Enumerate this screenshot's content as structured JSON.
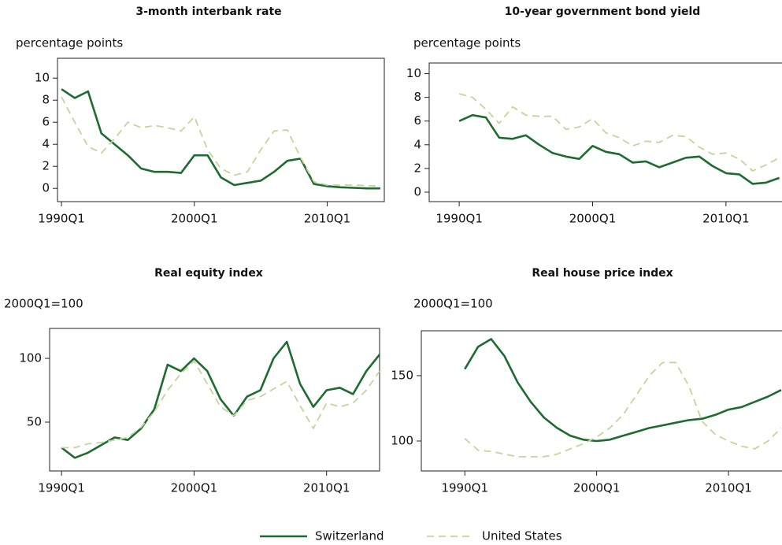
{
  "chart_data": [
    {
      "type": "line",
      "title": "3-month interbank rate",
      "ylabel": "percentage points",
      "x": [
        1990,
        1991,
        1992,
        1993,
        1994,
        1995,
        1996,
        1997,
        1998,
        1999,
        2000,
        2001,
        2002,
        2003,
        2004,
        2005,
        2006,
        2007,
        2008,
        2009,
        2010,
        2011,
        2012,
        2013,
        2014
      ],
      "xlim": [
        1989.7,
        2014.3
      ],
      "xticks": [
        {
          "value": 1990,
          "label": "1990Q1"
        },
        {
          "value": 2000,
          "label": "2000Q1"
        },
        {
          "value": 2010,
          "label": "2010Q1"
        }
      ],
      "ylim": [
        -1.2,
        11.8
      ],
      "yticks": [
        0,
        2,
        4,
        6,
        8,
        10
      ],
      "series": [
        {
          "name": "Switzerland",
          "color": "#1e6b30",
          "values": [
            9.0,
            8.2,
            8.8,
            5.0,
            4.0,
            3.0,
            1.8,
            1.5,
            1.5,
            1.4,
            3.0,
            3.0,
            1.0,
            0.3,
            0.5,
            0.7,
            1.5,
            2.5,
            2.7,
            0.4,
            0.2,
            0.1,
            0.05,
            0.0,
            0.0
          ]
        },
        {
          "name": "United States",
          "color": "#c3d59b",
          "values": [
            8.3,
            6.0,
            3.8,
            3.2,
            4.5,
            6.0,
            5.5,
            5.7,
            5.5,
            5.2,
            6.5,
            3.5,
            1.8,
            1.2,
            1.5,
            3.5,
            5.2,
            5.3,
            2.8,
            0.6,
            0.3,
            0.3,
            0.3,
            0.25,
            0.2
          ]
        }
      ]
    },
    {
      "type": "line",
      "title": "10-year government bond yield",
      "ylabel": "percentage points",
      "x": [
        1990,
        1991,
        1992,
        1993,
        1994,
        1995,
        1996,
        1997,
        1998,
        1999,
        2000,
        2001,
        2002,
        2003,
        2004,
        2005,
        2006,
        2007,
        2008,
        2009,
        2010,
        2011,
        2012,
        2013,
        2014
      ],
      "xlim": [
        1987.75,
        2014.2
      ],
      "xticks": [
        {
          "value": 1990,
          "label": "1990Q1"
        },
        {
          "value": 2000,
          "label": "2000Q1"
        },
        {
          "value": 2010,
          "label": "2010Q1"
        }
      ],
      "ylim": [
        -0.8,
        10.9
      ],
      "yticks": [
        0,
        2,
        4,
        6,
        8,
        10
      ],
      "series": [
        {
          "name": "Switzerland",
          "color": "#1e6b30",
          "values": [
            6.0,
            6.5,
            6.3,
            4.6,
            4.5,
            4.8,
            4.0,
            3.3,
            3.0,
            2.8,
            3.9,
            3.4,
            3.2,
            2.5,
            2.6,
            2.1,
            2.5,
            2.9,
            3.0,
            2.2,
            1.6,
            1.5,
            0.7,
            0.8,
            1.2
          ]
        },
        {
          "name": "United States",
          "color": "#c3d59b",
          "values": [
            8.3,
            8.0,
            7.0,
            5.8,
            7.2,
            6.5,
            6.4,
            6.4,
            5.3,
            5.5,
            6.2,
            5.0,
            4.6,
            3.9,
            4.3,
            4.2,
            4.8,
            4.7,
            3.8,
            3.2,
            3.3,
            2.8,
            1.8,
            2.3,
            2.9
          ]
        }
      ]
    },
    {
      "type": "line",
      "title": "Real equity index",
      "ylabel": "2000Q1=100",
      "x": [
        1990,
        1991,
        1992,
        1993,
        1994,
        1995,
        1996,
        1997,
        1998,
        1999,
        2000,
        2001,
        2002,
        2003,
        2004,
        2005,
        2006,
        2007,
        2008,
        2009,
        2010,
        2011,
        2012,
        2013,
        2014
      ],
      "xlim": [
        1989.1,
        2014.0
      ],
      "xticks": [
        {
          "value": 1990,
          "label": "1990Q1"
        },
        {
          "value": 2000,
          "label": "2000Q1"
        },
        {
          "value": 2010,
          "label": "2010Q1"
        }
      ],
      "ylim": [
        11.7,
        123.5
      ],
      "yticks": [
        50,
        100
      ],
      "series": [
        {
          "name": "Switzerland",
          "color": "#1e6b30",
          "values": [
            30,
            22,
            26,
            32,
            38,
            36,
            45,
            60,
            95,
            90,
            100,
            90,
            68,
            55,
            70,
            75,
            100,
            113,
            80,
            62,
            75,
            77,
            72,
            90,
            103
          ]
        },
        {
          "name": "United States",
          "color": "#c3d59b",
          "values": [
            30,
            30,
            33,
            34,
            36,
            38,
            46,
            58,
            75,
            88,
            98,
            80,
            62,
            55,
            67,
            70,
            76,
            82,
            63,
            45,
            65,
            62,
            65,
            75,
            90
          ]
        }
      ]
    },
    {
      "type": "line",
      "title": "Real house price index",
      "ylabel": "2000Q1=100",
      "x": [
        1990,
        1991,
        1992,
        1993,
        1994,
        1995,
        1996,
        1997,
        1998,
        1999,
        2000,
        2001,
        2002,
        2003,
        2004,
        2005,
        2006,
        2007,
        2008,
        2009,
        2010,
        2011,
        2012,
        2013,
        2014
      ],
      "xlim": [
        1986.7,
        2014.06
      ],
      "xticks": [
        {
          "value": 1990,
          "label": "1990Q1"
        },
        {
          "value": 2000,
          "label": "2000Q1"
        },
        {
          "value": 2010,
          "label": "2010Q1"
        }
      ],
      "ylim": [
        77.1,
        184.3
      ],
      "yticks": [
        100,
        150
      ],
      "series": [
        {
          "name": "Switzerland",
          "color": "#1e6b30",
          "values": [
            155,
            172,
            178,
            165,
            145,
            130,
            118,
            110,
            104,
            101,
            100,
            101,
            104,
            107,
            110,
            112,
            114,
            116,
            117,
            120,
            124,
            126,
            130,
            134,
            139
          ]
        },
        {
          "name": "United States",
          "color": "#c3d59b",
          "values": [
            102,
            93,
            92,
            90,
            88,
            88,
            88,
            90,
            94,
            98,
            103,
            110,
            120,
            135,
            150,
            160,
            160,
            142,
            115,
            105,
            100,
            96,
            94,
            100,
            110
          ]
        }
      ]
    }
  ]
}
